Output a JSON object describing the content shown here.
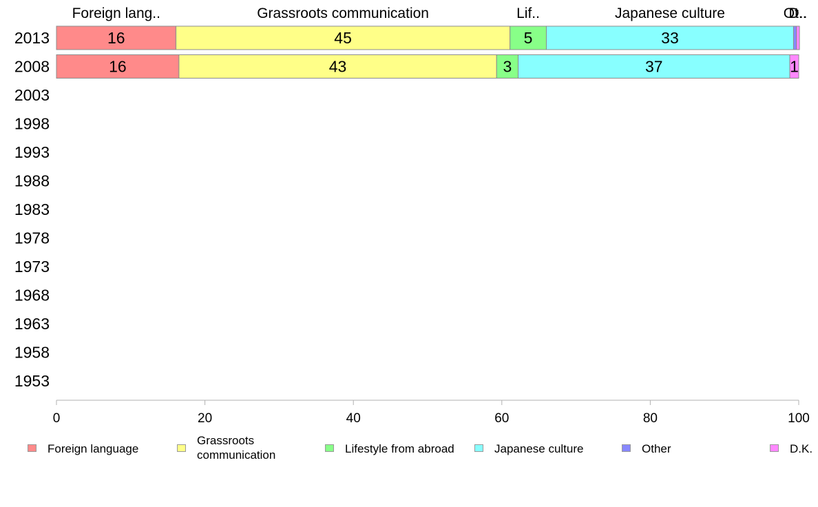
{
  "chart_data": {
    "type": "bar",
    "orientation": "horizontal",
    "stacked": true,
    "categories": [
      "2013",
      "2008",
      "2003",
      "1998",
      "1993",
      "1988",
      "1983",
      "1978",
      "1973",
      "1968",
      "1963",
      "1958",
      "1953"
    ],
    "series": [
      {
        "name": "Foreign language",
        "short_label": "Foreign lang..",
        "color": "#ff8a8a",
        "values": [
          16.1,
          16.5,
          null,
          null,
          null,
          null,
          null,
          null,
          null,
          null,
          null,
          null,
          null
        ],
        "labels": [
          "16",
          "16"
        ]
      },
      {
        "name": "Grassroots communication",
        "short_label": "Grassroots communication",
        "color": "#ffff88",
        "values": [
          45.0,
          42.8,
          null,
          null,
          null,
          null,
          null,
          null,
          null,
          null,
          null,
          null,
          null
        ],
        "labels": [
          "45",
          "43"
        ]
      },
      {
        "name": "Lifestyle from abroad",
        "short_label": "Lif..",
        "color": "#88ff88",
        "values": [
          4.9,
          2.9,
          null,
          null,
          null,
          null,
          null,
          null,
          null,
          null,
          null,
          null,
          null
        ],
        "labels": [
          "5",
          "3"
        ]
      },
      {
        "name": "Japanese culture",
        "short_label": "Japanese culture",
        "color": "#88ffff",
        "values": [
          33.3,
          36.6,
          null,
          null,
          null,
          null,
          null,
          null,
          null,
          null,
          null,
          null,
          null
        ],
        "labels": [
          "33",
          "37"
        ]
      },
      {
        "name": "Other",
        "short_label": "Ot..",
        "color": "#8888ff",
        "values": [
          0.4,
          0.0,
          null,
          null,
          null,
          null,
          null,
          null,
          null,
          null,
          null,
          null,
          null
        ],
        "labels": [
          "",
          ""
        ]
      },
      {
        "name": "D.K.",
        "short_label": "D..",
        "color": "#ff88ff",
        "values": [
          0.4,
          1.2,
          null,
          null,
          null,
          null,
          null,
          null,
          null,
          null,
          null,
          null,
          null
        ],
        "labels": [
          "",
          "1"
        ]
      }
    ],
    "xlim": [
      0,
      100
    ],
    "xticks": [
      "0",
      "20",
      "40",
      "60",
      "80",
      "100"
    ],
    "grid": false,
    "legend_position": "bottom"
  },
  "legend": {
    "items": [
      {
        "lines": [
          "Foreign language"
        ]
      },
      {
        "lines": [
          "Grassroots",
          "communication"
        ]
      },
      {
        "lines": [
          "Lifestyle from abroad"
        ]
      },
      {
        "lines": [
          "Japanese culture"
        ]
      },
      {
        "lines": [
          "Other"
        ]
      },
      {
        "lines": [
          "D.K."
        ]
      }
    ]
  }
}
